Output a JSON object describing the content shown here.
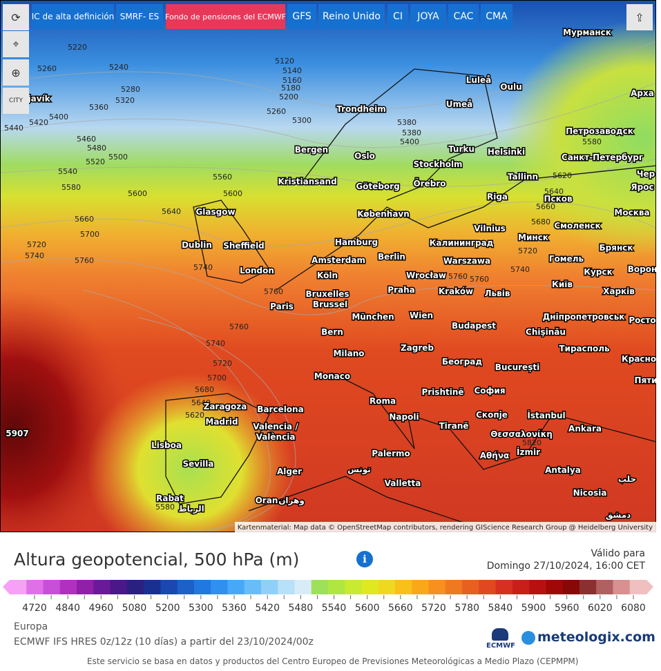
{
  "toolbar": {
    "buttons": [
      "IC de alta definición",
      "SMRF- ES",
      "Fondo de pensiones del ECMWF",
      "GFS",
      "Reino Unido",
      "CI",
      "JOYA",
      "CAC",
      "CMA"
    ],
    "city_button": "CITY"
  },
  "map": {
    "cities": [
      "Мурманск",
      "Luleå",
      "Oulu",
      "Арха",
      "Reykjavík",
      "Trondheim",
      "Umeå",
      "Петрозаводск",
      "Bergen",
      "Turku",
      "Helsinki",
      "Санкт-Петербург",
      "Oslo",
      "Stockholm",
      "Kristiansand",
      "Göteborg",
      "Örebro",
      "Tallinn",
      "Чер",
      "Ярос",
      "Riga",
      "Псков",
      "Glasgow",
      "København",
      "Москва",
      "Vilnius",
      "Смоленск",
      "Dublin",
      "Sheffield",
      "Hamburg",
      "Калининград",
      "Минск",
      "Брянск",
      "Amsterdam",
      "Berlin",
      "Warszawa",
      "Гомель",
      "London",
      "Köln",
      "Wrocław",
      "Курск",
      "Ворон",
      "Bruxelles",
      "Brussel",
      "Praha",
      "Kraków",
      "Львів",
      "Київ",
      "Харків",
      "Paris",
      "München",
      "Wien",
      "Дніпропетровськ",
      "Росто",
      "Budapest",
      "Bern",
      "Chişinău",
      "Milano",
      "Zagreb",
      "Тирасполь",
      "Красно",
      "Београд",
      "București",
      "Monaco",
      "Пяти",
      "Prishtinë",
      "София",
      "Zaragoza",
      "Barcelona",
      "Roma",
      "Napoli",
      "Скопје",
      "İstanbul",
      "Madrid",
      "Valencia /",
      "València",
      "Tiranë",
      "Ankara",
      "Θεσσαλονίκη",
      "Lisboa",
      "İzmir",
      "Sevilla",
      "Palermo",
      "Αθήνα",
      "Alger",
      "تونس",
      "Antalya",
      "حلب",
      "Valletta",
      "Nicosia",
      "Rabat",
      "Oran",
      "وهران",
      "الرباط",
      "دمشق"
    ],
    "contour_labels": [
      5220,
      5260,
      5240,
      5280,
      5320,
      5360,
      5420,
      5400,
      5440,
      5460,
      5480,
      5500,
      5520,
      5540,
      5580,
      5600,
      5640,
      5660,
      5700,
      5720,
      5740,
      5760,
      5740,
      5760,
      5760,
      5740,
      5720,
      5700,
      5680,
      5640,
      5620,
      5580,
      5907,
      5120,
      5140,
      5160,
      5180,
      5200,
      5260,
      5300,
      5380,
      5380,
      5400,
      5580,
      5620,
      5640,
      5660,
      5680,
      5720,
      5740,
      5760,
      5760,
      5820,
      5600,
      5560
    ],
    "attribution": "Kartenmaterial: Map data © OpenStreetMap contributors, rendering GIScience Research Group @ Heidelberg University"
  },
  "legend": {
    "title": "Altura geopotencial, 500 hPa (m)",
    "valid_label": "Válido para",
    "valid_time": "Domingo 27/10/2024, 16:00 CET",
    "labels": [
      4720,
      4840,
      4960,
      5080,
      5200,
      5300,
      5360,
      5420,
      5480,
      5540,
      5600,
      5660,
      5720,
      5780,
      5840,
      5900,
      5960,
      6020,
      6080
    ],
    "colors": [
      "#f6a0f6",
      "#e070e8",
      "#c850d8",
      "#b030c0",
      "#9020a8",
      "#6a1a98",
      "#4a1888",
      "#2a2080",
      "#1a3090",
      "#1848b0",
      "#1c60c8",
      "#2078e0",
      "#3090f0",
      "#48a8f8",
      "#68bcf8",
      "#90d0f8",
      "#b8e0f8",
      "#d8ecf8",
      "#9ee05a",
      "#b0e640",
      "#c8ea30",
      "#e0e820",
      "#f0d820",
      "#f8c018",
      "#f8a818",
      "#f89020",
      "#f07820",
      "#e86020",
      "#e04820",
      "#d83020",
      "#c82018",
      "#b81010",
      "#a00808",
      "#880808",
      "#8a3030",
      "#b06060",
      "#d89090",
      "#f0c0c0"
    ]
  },
  "footer": {
    "region": "Europa",
    "model": "ECMWF IFS HRES 0z/12z (10 días) a partir del 23/10/2024/00z",
    "ecmwf": "ECMWF",
    "brand": "meteologix.com",
    "disclaimer": "Este servicio se basa en datos y productos del Centro Europeo de Previsiones Meteorológicas a Medio Plazo (CEPMPM)"
  }
}
